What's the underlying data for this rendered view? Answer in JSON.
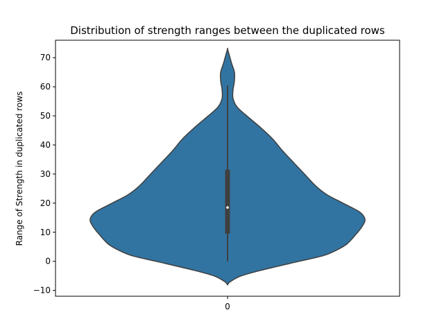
{
  "chart_data": {
    "type": "violin",
    "title": "Distribution of strength ranges between the duplicated rows",
    "xlabel": "",
    "ylabel": "Range of Strength in duplicated rows",
    "categories": [
      "0"
    ],
    "ylim": [
      -12,
      76
    ],
    "yticks": [
      -10,
      0,
      10,
      20,
      30,
      40,
      50,
      60,
      70
    ],
    "ytick_labels": [
      "−10",
      "0",
      "10",
      "20",
      "30",
      "40",
      "50",
      "60",
      "70"
    ],
    "grid": false,
    "legend": "none",
    "violin": {
      "density_profile": [
        {
          "y": -8,
          "w": 0.0
        },
        {
          "y": -7,
          "w": 0.02
        },
        {
          "y": -5,
          "w": 0.1
        },
        {
          "y": -3,
          "w": 0.25
        },
        {
          "y": 0,
          "w": 0.52
        },
        {
          "y": 2,
          "w": 0.7
        },
        {
          "y": 4,
          "w": 0.8
        },
        {
          "y": 6,
          "w": 0.87
        },
        {
          "y": 9,
          "w": 0.93
        },
        {
          "y": 12,
          "w": 0.98
        },
        {
          "y": 14.5,
          "w": 1.0
        },
        {
          "y": 17,
          "w": 0.96
        },
        {
          "y": 20,
          "w": 0.84
        },
        {
          "y": 23,
          "w": 0.72
        },
        {
          "y": 26,
          "w": 0.64
        },
        {
          "y": 30,
          "w": 0.56
        },
        {
          "y": 34,
          "w": 0.48
        },
        {
          "y": 38,
          "w": 0.4
        },
        {
          "y": 42,
          "w": 0.33
        },
        {
          "y": 46,
          "w": 0.24
        },
        {
          "y": 50,
          "w": 0.14
        },
        {
          "y": 53,
          "w": 0.07
        },
        {
          "y": 56,
          "w": 0.04
        },
        {
          "y": 59,
          "w": 0.04
        },
        {
          "y": 62,
          "w": 0.05
        },
        {
          "y": 65,
          "w": 0.05
        },
        {
          "y": 68,
          "w": 0.03
        },
        {
          "y": 71,
          "w": 0.012
        },
        {
          "y": 73,
          "w": 0.0
        }
      ],
      "min": 0,
      "q1": 9.5,
      "median": 18.5,
      "q3": 31.5,
      "max": 60.5
    },
    "colors": {
      "fill": "#3274a1",
      "edge": "#3f3f3f",
      "box": "#3f3f3f",
      "median": "#ffffff"
    }
  }
}
